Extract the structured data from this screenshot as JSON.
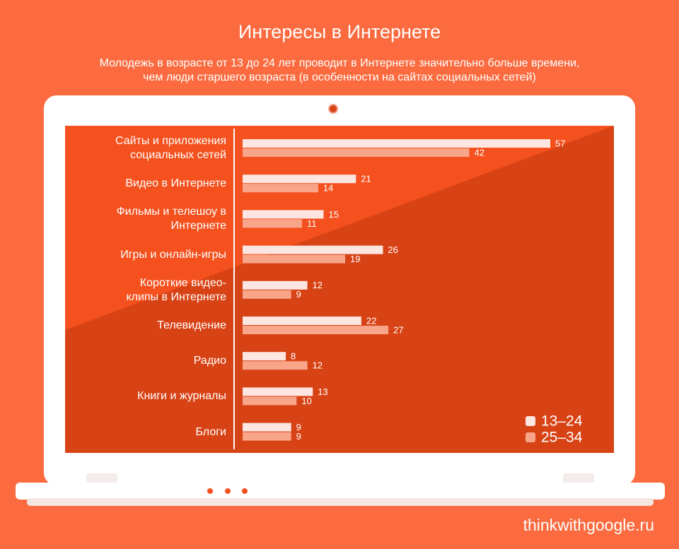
{
  "chart_data": {
    "type": "hbar",
    "title": "Интересы в Интернете",
    "subtitle": "Молодежь в возрасте от 13 до 24 лет проводит в Интернете значительно больше времени,\nчем люди старшего возраста (в особенности на сайтах социальных сетей)",
    "categories": [
      "Сайты и приложения\nсоциальных сетей",
      "Видео в Интернете",
      "Фильмы и телешоу в\nИнтернете",
      "Игры и онлайн-игры",
      "Короткие видео-\nклипы в Интернете",
      "Телевидение",
      "Радио",
      "Книги и журналы",
      "Блоги"
    ],
    "series": [
      {
        "name": "13–24",
        "color": "#fde6e1",
        "values": [
          57,
          21,
          15,
          26,
          12,
          22,
          8,
          13,
          9
        ]
      },
      {
        "name": "25–34",
        "color": "#f9a58a",
        "values": [
          42,
          14,
          11,
          19,
          9,
          27,
          12,
          10,
          9
        ]
      }
    ],
    "legend": "bottom-right"
  },
  "footer": "thinkwithgoogle.ru"
}
